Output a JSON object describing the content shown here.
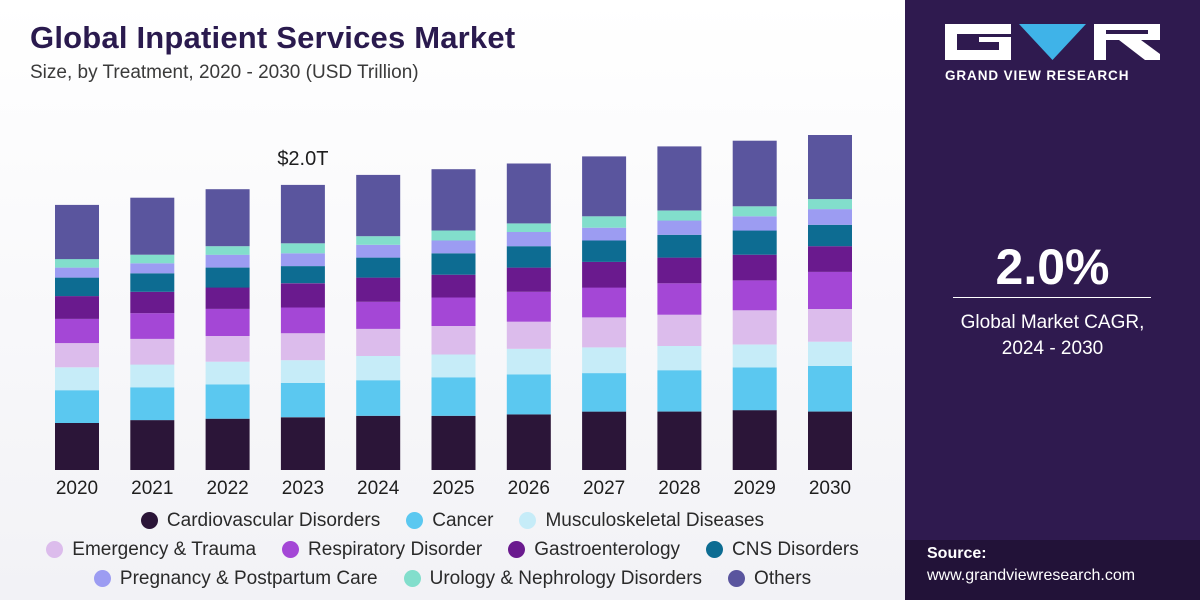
{
  "title": "Global Inpatient Services Market",
  "subtitle": "Size, by Treatment, 2020 - 2030 (USD Trillion)",
  "brand": {
    "logo_icon": "grand-view-research-logo",
    "name": "GRAND VIEW RESEARCH"
  },
  "cagr": {
    "value": "2.0%",
    "label_line1": "Global Market CAGR,",
    "label_line2": "2024 - 2030"
  },
  "source": {
    "label": "Source:",
    "url": "www.grandviewresearch.com"
  },
  "colors": {
    "panel_bg": "#2f1a4f",
    "panel_footer_bg": "#221238",
    "title": "#2a1a4e"
  },
  "chart_data": {
    "type": "bar",
    "stacked": true,
    "categories": [
      "2020",
      "2021",
      "2022",
      "2023",
      "2024",
      "2025",
      "2026",
      "2027",
      "2028",
      "2029",
      "2030"
    ],
    "annotations": [
      {
        "category": "2023",
        "text": "$2.0T"
      }
    ],
    "ylim": [
      0,
      2.35
    ],
    "grid": false,
    "legend_position": "bottom",
    "series": [
      {
        "name": "Cardiovascular Disorders",
        "color": "#2b1538",
        "values": [
          0.33,
          0.35,
          0.36,
          0.37,
          0.38,
          0.38,
          0.39,
          0.41,
          0.41,
          0.42,
          0.41
        ]
      },
      {
        "name": "Cancer",
        "color": "#5bc8f0",
        "values": [
          0.23,
          0.23,
          0.24,
          0.24,
          0.25,
          0.27,
          0.28,
          0.27,
          0.29,
          0.3,
          0.32
        ]
      },
      {
        "name": "Musculoskeletal Diseases",
        "color": "#c6ecf8",
        "values": [
          0.16,
          0.16,
          0.16,
          0.16,
          0.17,
          0.16,
          0.18,
          0.18,
          0.17,
          0.16,
          0.17
        ]
      },
      {
        "name": "Emergency & Trauma",
        "color": "#dcbcec",
        "values": [
          0.17,
          0.18,
          0.18,
          0.19,
          0.19,
          0.2,
          0.19,
          0.21,
          0.22,
          0.24,
          0.23
        ]
      },
      {
        "name": "Respiratory Disorder",
        "color": "#a447d6",
        "values": [
          0.17,
          0.18,
          0.19,
          0.18,
          0.19,
          0.2,
          0.21,
          0.21,
          0.22,
          0.21,
          0.26
        ]
      },
      {
        "name": "Gastroenterology",
        "color": "#6a1a8e",
        "values": [
          0.16,
          0.15,
          0.15,
          0.17,
          0.17,
          0.16,
          0.17,
          0.18,
          0.18,
          0.18,
          0.18
        ]
      },
      {
        "name": "CNS Disorders",
        "color": "#0d6c92",
        "values": [
          0.13,
          0.13,
          0.14,
          0.12,
          0.14,
          0.15,
          0.15,
          0.15,
          0.16,
          0.17,
          0.15
        ]
      },
      {
        "name": "Pregnancy & Postpartum Care",
        "color": "#9c9cf2",
        "values": [
          0.07,
          0.07,
          0.09,
          0.09,
          0.09,
          0.09,
          0.1,
          0.09,
          0.1,
          0.1,
          0.11
        ]
      },
      {
        "name": "Urology & Nephrology Disorders",
        "color": "#82decc",
        "values": [
          0.06,
          0.06,
          0.06,
          0.07,
          0.06,
          0.07,
          0.06,
          0.08,
          0.07,
          0.07,
          0.07
        ]
      },
      {
        "name": "Others",
        "color": "#5a559e",
        "values": [
          0.38,
          0.4,
          0.4,
          0.41,
          0.43,
          0.43,
          0.42,
          0.42,
          0.45,
          0.46,
          0.45
        ]
      }
    ]
  }
}
